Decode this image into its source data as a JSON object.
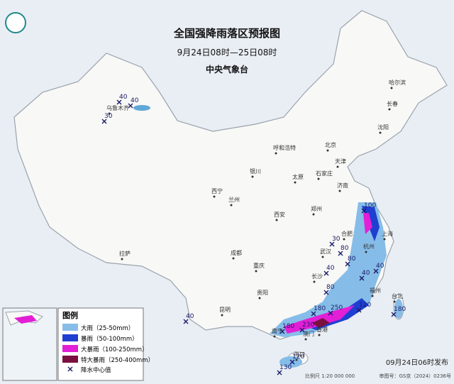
{
  "header": {
    "title": "全国强降雨落区预报图",
    "period": "9月24日08时—25日08时",
    "issuer": "中央气象台"
  },
  "legend": {
    "title": "图例",
    "items": [
      {
        "label": "大雨（25-50mm）",
        "color": "#86bde8"
      },
      {
        "label": "暴雨（50-100mm）",
        "color": "#1f3fd1"
      },
      {
        "label": "大暴雨（100-250mm）",
        "color": "#e21fd6"
      },
      {
        "label": "特大暴雨（250-400mm）",
        "color": "#7a1040"
      }
    ],
    "center_label": "降水中心值"
  },
  "cities": [
    "乌鲁木齐",
    "哈尔滨",
    "长春",
    "沈阳",
    "北京",
    "天津",
    "呼和浩特",
    "石家庄",
    "太原",
    "济南",
    "银川",
    "西宁",
    "兰州",
    "郑州",
    "西安",
    "合肥",
    "上海",
    "武汉",
    "杭州",
    "成都",
    "拉萨",
    "重庆",
    "长沙",
    "福州",
    "贵阳",
    "台北",
    "昆明",
    "南宁",
    "澳门",
    "香港",
    "海口"
  ],
  "rain_centers": [
    40,
    40,
    30,
    40,
    100,
    30,
    80,
    40,
    80,
    40,
    40,
    80,
    120,
    180,
    250,
    180,
    230,
    120,
    130,
    180
  ],
  "footer": {
    "release": "09月24日06时发布",
    "scale": "比例尺 1:20 000 000",
    "approval": "审图号：GS京（2024）0236号"
  }
}
